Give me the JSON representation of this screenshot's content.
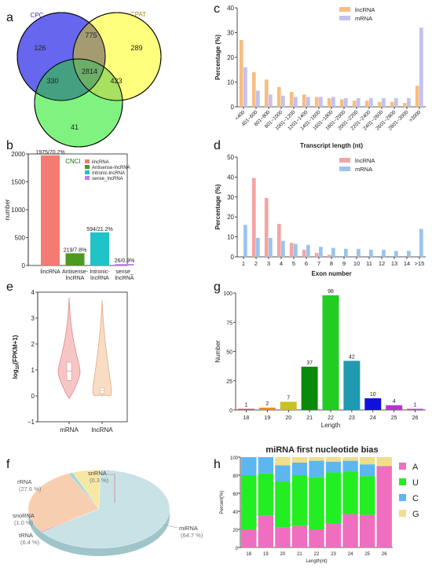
{
  "panels": {
    "a": "a",
    "b": "b",
    "c": "c",
    "d": "d",
    "e": "e",
    "f": "f",
    "g": "g",
    "h": "h"
  },
  "colors": {
    "cpc": "#6666ee",
    "cpat": "#ffff66",
    "cnci": "#55ee55",
    "lnc_orange": "#f7bd82",
    "mrna_lavender": "#c2c2f0",
    "lnc_pink": "#f4a4a4",
    "mrna_blue": "#9ac4ec",
    "b_lincRNA": "#f47b72",
    "b_antisense": "#4a9b1f",
    "b_intronic": "#20c3c8",
    "b_sense": "#c678f0",
    "h_A": "#f06ec0",
    "h_U": "#22ee22",
    "h_C": "#5eb6f0",
    "h_G": "#f0de8a"
  },
  "chart_data": [
    {
      "panel": "a",
      "type": "venn",
      "sets": [
        "CPC",
        "CPAT",
        "CNCI"
      ],
      "regions": {
        "CPC_only": 126,
        "CPAT_only": 289,
        "CNCI_only": 41,
        "CPC_CPAT": 775,
        "CPC_CNCI": 330,
        "CPAT_CNCI": 423,
        "all": 2814
      }
    },
    {
      "panel": "b",
      "type": "bar",
      "ylabel": "number",
      "ylim": [
        0,
        2000
      ],
      "yticks": [
        "0",
        "500",
        "1000",
        "1500",
        "2000"
      ],
      "categories": [
        "lincRNA",
        "Antisense-\nlncRNA",
        "Intronic-\nlncRNA",
        "sense_\nlncRNA"
      ],
      "values": [
        1975,
        219,
        594,
        26
      ],
      "data_labels": [
        "1975/70.2%",
        "219/7.8%",
        "594/21.2%",
        "26/0.9%"
      ],
      "legend": [
        "lincRNA",
        "Antisense-lncRNA",
        "Intronic-lncRNA",
        "sense_lncRNA"
      ]
    },
    {
      "panel": "c",
      "type": "bar",
      "xlabel": "Transcript length (nt)",
      "ylabel": "Percentage (%)",
      "ylim": [
        0,
        40
      ],
      "yticks": [
        "0",
        "10",
        "20",
        "30",
        "40"
      ],
      "categories": [
        "<400",
        "401~600",
        "601~800",
        "801~1000",
        "1001~1200",
        "1201~1400",
        "1401~1600",
        "1601~1800",
        "1801~2000",
        "2001~2200",
        "2201~2400",
        "2401~2600",
        "2601~2800",
        "2801~3000",
        ">3000"
      ],
      "series": [
        {
          "name": "lncRNA",
          "values": [
            27,
            14,
            11,
            8,
            6,
            5,
            4,
            3.5,
            3,
            2.5,
            2.5,
            2,
            2,
            1.5,
            8.5
          ]
        },
        {
          "name": "mRNA",
          "values": [
            16,
            6.5,
            5,
            4.5,
            4,
            4,
            4,
            4,
            3.5,
            3.5,
            3.5,
            3.5,
            3.5,
            3.5,
            32
          ]
        }
      ]
    },
    {
      "panel": "d",
      "type": "bar",
      "xlabel": "Exon number",
      "ylabel": "Percentage (%)",
      "ylim": [
        0,
        50
      ],
      "yticks": [
        "0",
        "10",
        "20",
        "30",
        "40",
        "50"
      ],
      "categories": [
        "1",
        "2",
        "3",
        "4",
        "5",
        "6",
        "7",
        "8",
        "9",
        "10",
        "11",
        "12",
        "13",
        "14",
        ">15"
      ],
      "series": [
        {
          "name": "lncRNA",
          "values": [
            0,
            39.5,
            29.5,
            16.5,
            7,
            3.5,
            2,
            1,
            0,
            0,
            0,
            0,
            0,
            0,
            0
          ]
        },
        {
          "name": "mRNA",
          "values": [
            16,
            9.5,
            9.5,
            8,
            6.5,
            6,
            5,
            4.5,
            4,
            4,
            3.5,
            3.5,
            3,
            3,
            14
          ]
        }
      ]
    },
    {
      "panel": "e",
      "type": "violin",
      "ylabel_base": "log",
      "ylabel_sub": "10",
      "ylabel_rest": "(FPKM+1)",
      "ylim": [
        -1,
        4
      ],
      "yticks": [
        "−1",
        "0",
        "1",
        "2",
        "3",
        "4"
      ],
      "categories": [
        "mRNA",
        "lncRNA"
      ],
      "summary": [
        {
          "name": "mRNA",
          "min": -0.1,
          "q1": 0.6,
          "median": 0.95,
          "q3": 1.3,
          "max": 3.8
        },
        {
          "name": "lncRNA",
          "min": 0.0,
          "q1": 0.1,
          "median": 0.2,
          "q3": 0.3,
          "max": 3.7
        }
      ]
    },
    {
      "panel": "f",
      "type": "pie",
      "slices": [
        {
          "name": "miRNA",
          "pct": "(64.7 %)",
          "value": 64.7,
          "color": "#c8e2e6"
        },
        {
          "name": "snRNA",
          "pct": "(0.3 %)",
          "value": 0.3,
          "color": "#e86060"
        },
        {
          "name": "rRNA",
          "pct": "(27.6 %)",
          "value": 27.6,
          "color": "#f7cfb0"
        },
        {
          "name": "snoRNA",
          "pct": "(1.0 %)",
          "value": 1.0,
          "color": "#9fd8e0"
        },
        {
          "name": "tRNA",
          "pct": "(6.4 %)",
          "value": 6.4,
          "color": "#f7e7a5"
        }
      ]
    },
    {
      "panel": "g",
      "type": "bar",
      "xlabel": "Length",
      "ylabel": "Number",
      "ylim": [
        0,
        100
      ],
      "yticks": [
        "0",
        "25",
        "50",
        "75",
        "100"
      ],
      "categories": [
        "18",
        "19",
        "20",
        "21",
        "22",
        "23",
        "24",
        "25",
        "26"
      ],
      "values": [
        1,
        2,
        7,
        37,
        98,
        42,
        10,
        4,
        1
      ],
      "data_labels": [
        "1",
        "2",
        "7",
        "37",
        "98",
        "42",
        "10",
        "4",
        "1"
      ],
      "bar_colors": [
        "#e8473c",
        "#f08a24",
        "#c8c222",
        "#0a8a0a",
        "#22cc22",
        "#1f9ab0",
        "#1010dd",
        "#b733d6",
        "#aa44cc"
      ]
    },
    {
      "panel": "h",
      "type": "stacked-bar",
      "title": "miRNA first nucleotide bias",
      "xlabel": "Length(nt)",
      "ylabel": "Percent(%)",
      "ylim": [
        0,
        100
      ],
      "yticks": [
        "0",
        "20",
        "40",
        "60",
        "80",
        "100"
      ],
      "categories": [
        "18",
        "19",
        "20",
        "21",
        "22",
        "23",
        "24",
        "25",
        "26"
      ],
      "series": [
        {
          "name": "A",
          "values": [
            20,
            35,
            22,
            24,
            20,
            27,
            37,
            36,
            90
          ]
        },
        {
          "name": "U",
          "values": [
            60,
            47,
            51,
            56,
            58,
            56,
            47,
            43,
            0
          ]
        },
        {
          "name": "C",
          "values": [
            20,
            18,
            18,
            14,
            18,
            12,
            12,
            13,
            0
          ]
        },
        {
          "name": "G",
          "values": [
            0,
            0,
            9,
            6,
            4,
            5,
            4,
            8,
            10
          ]
        }
      ]
    }
  ]
}
